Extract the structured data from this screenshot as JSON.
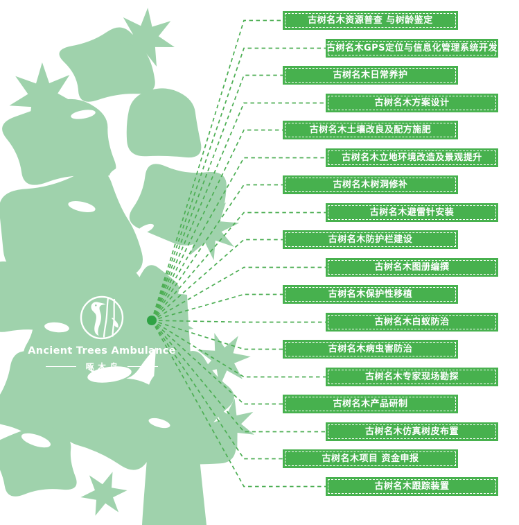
{
  "logo": {
    "icon": "woodpecker-on-trunk-icon",
    "name": "Ancient Trees Ambulance",
    "chinese_name": "啄木鸟"
  },
  "services": {
    "items": [
      "古树名木资源普查 与树龄鉴定",
      "古树名木GPS定位与信息化管理系统开发",
      "古树名木日常养护",
      "古树名木方案设计",
      "古树名木土壤改良及配方施肥",
      "古树名木立地环境改造及景观提升",
      "古树名木树洞修补",
      "古树名木避雷针安装",
      "古树名木防护栏建设",
      "古树名木图册编撰",
      "古树名木保护性移植",
      "古树名木白蚁防治",
      "古树名木病虫害防治",
      "古树名木专家现场勘探",
      "古树名木产品研制",
      "古树名木仿真树皮布置",
      "古树名木项目 资金申报",
      "古树名木跟踪装置"
    ]
  },
  "colors": {
    "tree_green": "#9fd2ac",
    "box_green": "#47b14e",
    "line_green": "#4cae53",
    "dot_green": "#2fa344",
    "text_white": "#ffffff"
  }
}
